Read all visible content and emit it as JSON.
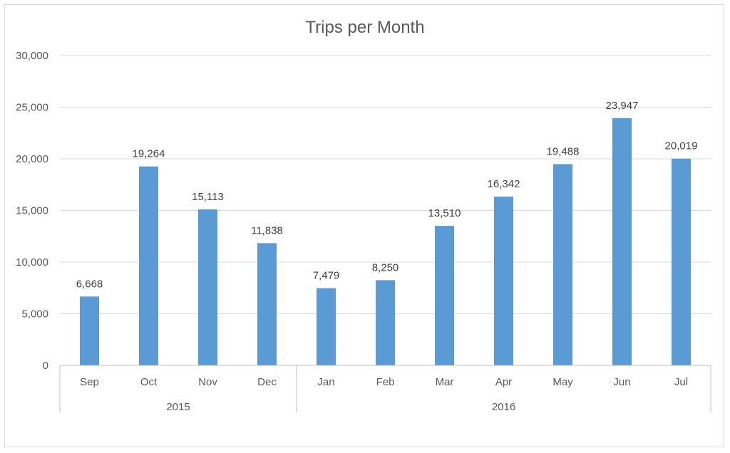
{
  "chart_data": {
    "type": "bar",
    "title": "Trips per Month",
    "xlabel": "",
    "ylabel": "",
    "ylim": [
      0,
      30000
    ],
    "yticks": [
      0,
      5000,
      10000,
      15000,
      20000,
      25000,
      30000
    ],
    "ytick_labels": [
      "0",
      "5,000",
      "10,000",
      "15,000",
      "20,000",
      "25,000",
      "30,000"
    ],
    "grid": true,
    "legend": "none",
    "categories": [
      "Sep",
      "Oct",
      "Nov",
      "Dec",
      "Jan",
      "Feb",
      "Mar",
      "Apr",
      "May",
      "Jun",
      "Jul"
    ],
    "groups": [
      {
        "label": "2015",
        "count": 4
      },
      {
        "label": "2016",
        "count": 7
      }
    ],
    "values": [
      6668,
      19264,
      15113,
      11838,
      7479,
      8250,
      13510,
      16342,
      19488,
      23947,
      20019
    ],
    "data_labels": [
      "6,668",
      "19,264",
      "15,113",
      "11,838",
      "7,479",
      "8,250",
      "13,510",
      "16,342",
      "19,488",
      "23,947",
      "20,019"
    ],
    "colors": {
      "bar": "#5b9bd5",
      "grid": "#d9d9d9",
      "axis": "#bfbfbf",
      "text": "#595959"
    }
  }
}
